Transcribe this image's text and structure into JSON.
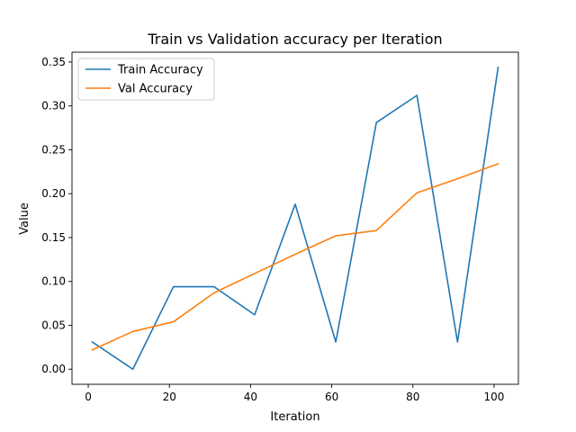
{
  "chart_data": {
    "type": "line",
    "title": "Train vs Validation accuracy per Iteration",
    "xlabel": "Iteration",
    "ylabel": "Value",
    "xlim": [
      -4.0,
      106.0
    ],
    "ylim": [
      -0.0172,
      0.3612
    ],
    "xticks": [
      0,
      20,
      40,
      60,
      80,
      100
    ],
    "xtick_labels": [
      "0",
      "20",
      "40",
      "60",
      "80",
      "100"
    ],
    "yticks": [
      0.0,
      0.05,
      0.1,
      0.15,
      0.2,
      0.25,
      0.3,
      0.35
    ],
    "ytick_labels": [
      "0.00",
      "0.05",
      "0.10",
      "0.15",
      "0.20",
      "0.25",
      "0.30",
      "0.35"
    ],
    "grid": false,
    "legend_position": "top-left",
    "x": [
      1,
      11,
      21,
      31,
      41,
      51,
      61,
      71,
      81,
      91,
      101
    ],
    "series": [
      {
        "name": "Train Accuracy",
        "color": "#1f77b4",
        "values": [
          0.031,
          0.0,
          0.094,
          0.094,
          0.062,
          0.188,
          0.031,
          0.281,
          0.312,
          0.031,
          0.344
        ]
      },
      {
        "name": "Val Accuracy",
        "color": "#ff7f0e",
        "values": [
          0.022,
          0.043,
          0.054,
          0.087,
          0.109,
          0.131,
          0.152,
          0.158,
          0.201,
          0.217,
          0.234
        ]
      }
    ]
  }
}
